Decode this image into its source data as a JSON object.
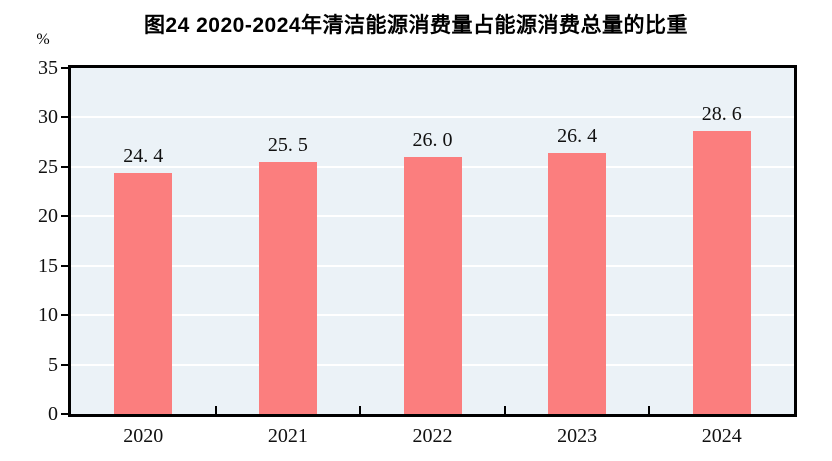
{
  "header": {
    "title": "图24  2020-2024年清洁能源消费量占能源消费总量的比重"
  },
  "y_axis": {
    "unit_label": "%"
  },
  "chart_data": {
    "type": "bar",
    "title": "图24  2020-2024年清洁能源消费量占能源消费总量的比重",
    "categories": [
      "2020",
      "2021",
      "2022",
      "2023",
      "2024"
    ],
    "values": [
      24.4,
      25.5,
      26.0,
      26.4,
      28.6
    ],
    "value_labels": [
      "24. 4",
      "25. 5",
      "26. 0",
      "26. 4",
      "28. 6"
    ],
    "xlabel": "",
    "ylabel": "%",
    "ylim": [
      0,
      35
    ],
    "yticks": [
      0,
      5,
      10,
      15,
      20,
      25,
      30,
      35
    ],
    "grid": true,
    "legend": "none",
    "colors": {
      "bar": "#FB7E7E",
      "plot_background": "#EBF2F7",
      "gridline": "#FFFFFF",
      "axis": "#000000"
    }
  }
}
